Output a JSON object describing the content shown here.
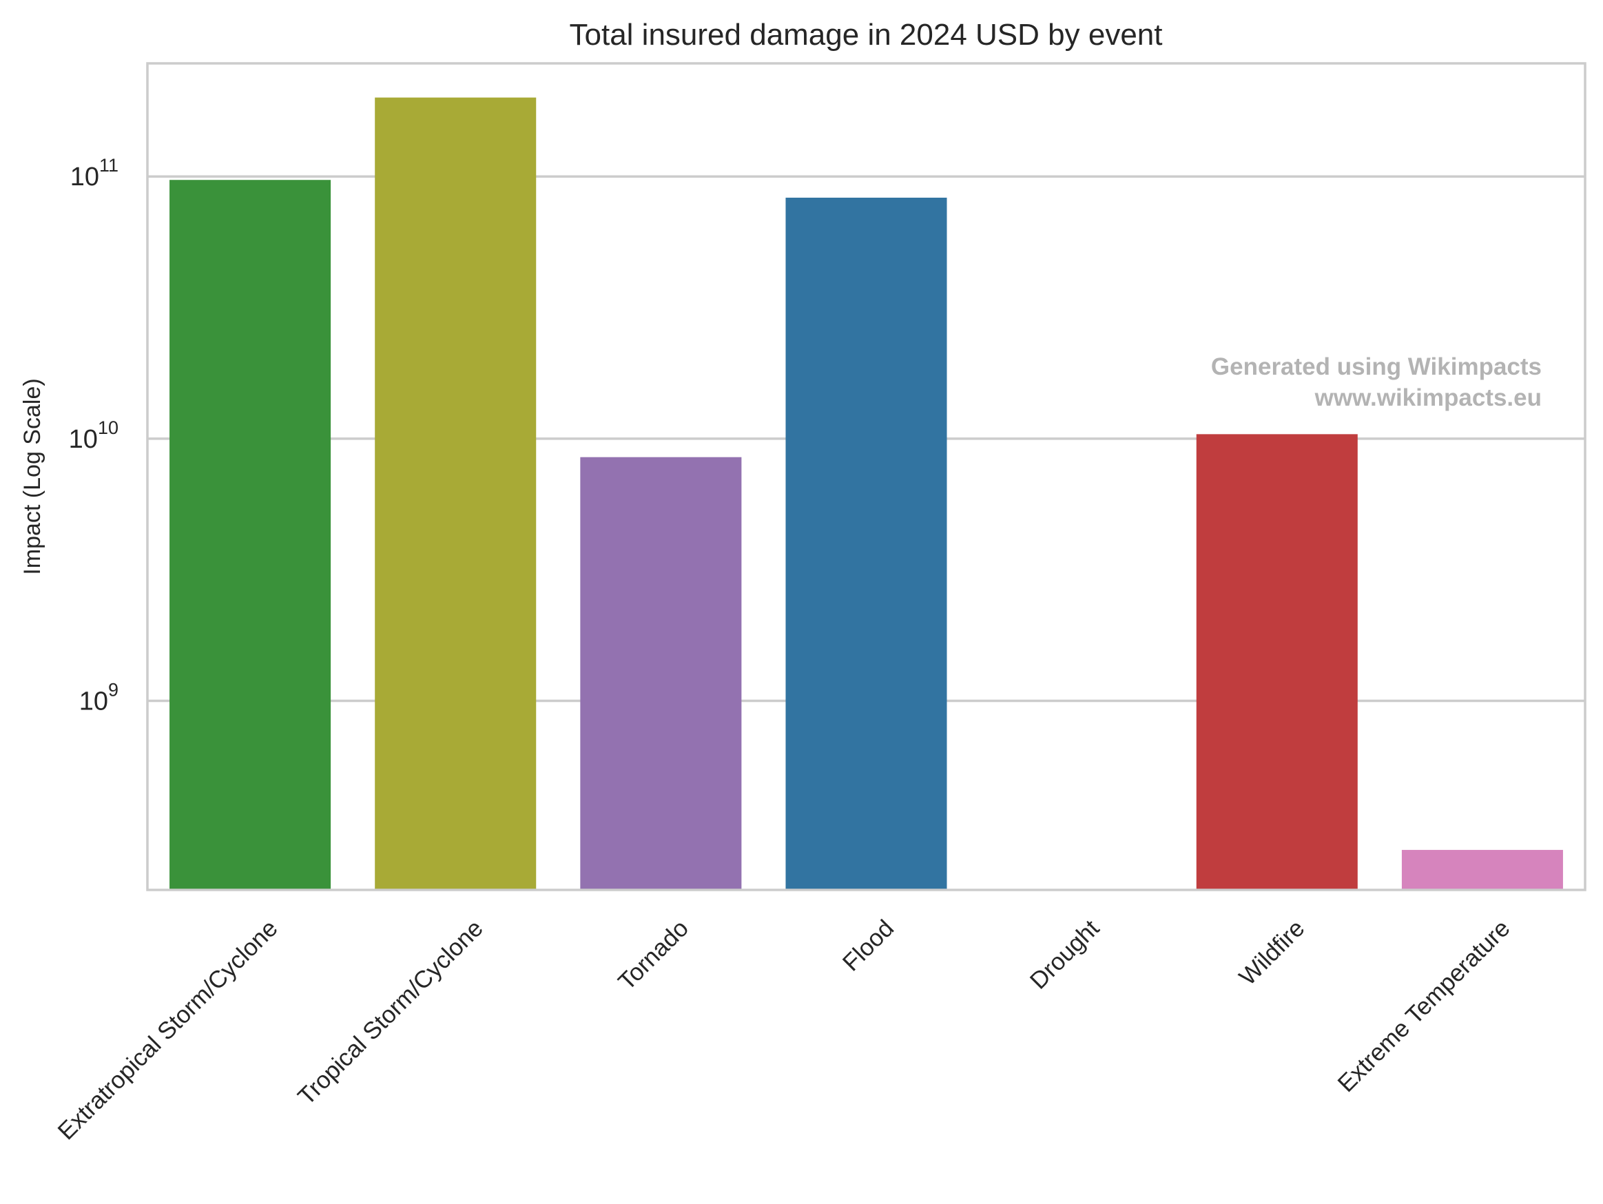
{
  "chart_data": {
    "type": "bar",
    "title": "Total insured damage in 2024 USD by event",
    "xlabel": "",
    "ylabel": "Impact (Log Scale)",
    "y_scale": "log",
    "ylim": [
      190000000,
      270000000000
    ],
    "y_ticks": [
      {
        "value": 1000000000,
        "base": "10",
        "exp": "9"
      },
      {
        "value": 10000000000,
        "base": "10",
        "exp": "10"
      },
      {
        "value": 100000000000,
        "base": "10",
        "exp": "11"
      }
    ],
    "grid": true,
    "categories": [
      "Extratropical Storm/Cyclone",
      "Tropical Storm/Cyclone",
      "Tornado",
      "Flood",
      "Drought",
      "Wildfire",
      "Extreme Temperature"
    ],
    "values": [
      97000000000,
      200000000000,
      8500000000,
      83000000000,
      null,
      10400000000,
      270000000
    ],
    "colors": [
      "#3a923a",
      "#a8aa36",
      "#9372b0",
      "#3274a1",
      "#e1812c",
      "#c03d3e",
      "#d684bd"
    ],
    "watermark": {
      "line1": "Generated using Wikimpacts",
      "line2": "www.wikimpacts.eu"
    }
  }
}
